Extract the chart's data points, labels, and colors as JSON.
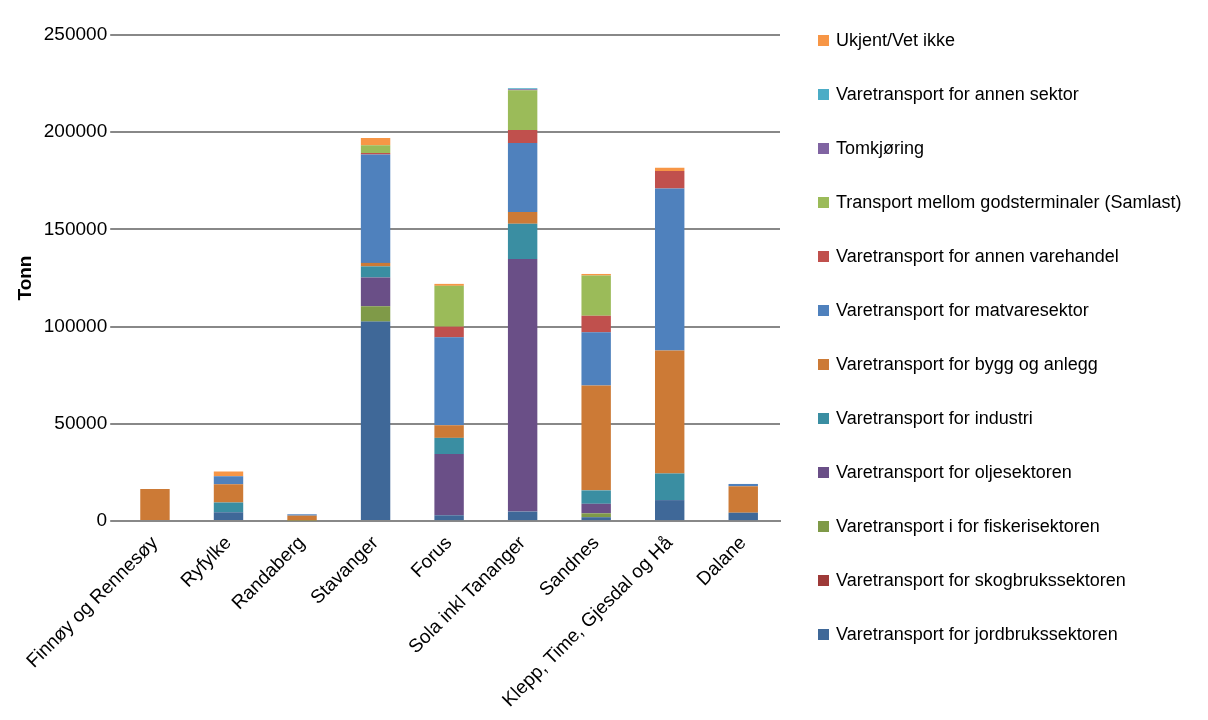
{
  "chart_data": {
    "type": "bar",
    "stacked": true,
    "ylabel": "Tonn",
    "categories": [
      "Finnøy og Rennesøy",
      "Ryfylke",
      "Randaberg",
      "Stavanger",
      "Forus",
      "Sola inkl Tananger",
      "Sandnes",
      "Klepp, Time, Gjesdal og Hå",
      "Dalane"
    ],
    "ylim": [
      0,
      250000
    ],
    "yticks": [
      0,
      50000,
      100000,
      150000,
      200000,
      250000
    ],
    "grid": "y",
    "legend": "right",
    "series": [
      {
        "name": "Varetransport for jordbrukssektoren",
        "color": "#3f6898",
        "values": [
          0,
          4500,
          0,
          102600,
          3000,
          4900,
          2000,
          10800,
          4300
        ]
      },
      {
        "name": "Varetransport for skogbrukssektoren",
        "color": "#9e3a38",
        "values": [
          0,
          0,
          0,
          0,
          0,
          0,
          0,
          0,
          0
        ]
      },
      {
        "name": "Varetransport i for fiskerisektoren",
        "color": "#7f9a48",
        "values": [
          0,
          0,
          300,
          7900,
          0,
          0,
          2000,
          0,
          0
        ]
      },
      {
        "name": "Varetransport for oljesektoren",
        "color": "#6a4f87",
        "values": [
          0,
          0,
          0,
          14800,
          31500,
          129900,
          4900,
          0,
          0
        ]
      },
      {
        "name": "Varetransport for industri",
        "color": "#3a8ea2",
        "values": [
          0,
          5000,
          0,
          5700,
          8300,
          18100,
          6900,
          13700,
          0
        ]
      },
      {
        "name": "Varetransport for bygg og anlegg",
        "color": "#cc7a36",
        "values": [
          16500,
          9500,
          2500,
          1800,
          6500,
          6100,
          53900,
          63300,
          13600
        ]
      },
      {
        "name": "Varetransport for matvaresektor",
        "color": "#4f81bd",
        "values": [
          0,
          4000,
          700,
          55800,
          45200,
          35400,
          27400,
          83300,
          1200
        ]
      },
      {
        "name": "Varetransport for annen varehandel",
        "color": "#c0504d",
        "values": [
          0,
          0,
          0,
          700,
          5500,
          6700,
          8500,
          8900,
          0
        ]
      },
      {
        "name": "Transport mellom godsterminaler (Samlast)",
        "color": "#9bbb59",
        "values": [
          0,
          0,
          0,
          4000,
          21000,
          20500,
          20700,
          0,
          0
        ]
      },
      {
        "name": "Tomkjøring",
        "color": "#8064a2",
        "values": [
          0,
          0,
          0,
          0,
          0,
          500,
          0,
          0,
          0
        ]
      },
      {
        "name": "Varetransport for annen sektor",
        "color": "#4bacc6",
        "values": [
          0,
          0,
          0,
          0,
          0,
          500,
          0,
          0,
          0
        ]
      },
      {
        "name": "Ukjent/Vet ikke",
        "color": "#f79646",
        "values": [
          0,
          2500,
          0,
          3700,
          1000,
          0,
          800,
          1700,
          0
        ]
      }
    ]
  }
}
